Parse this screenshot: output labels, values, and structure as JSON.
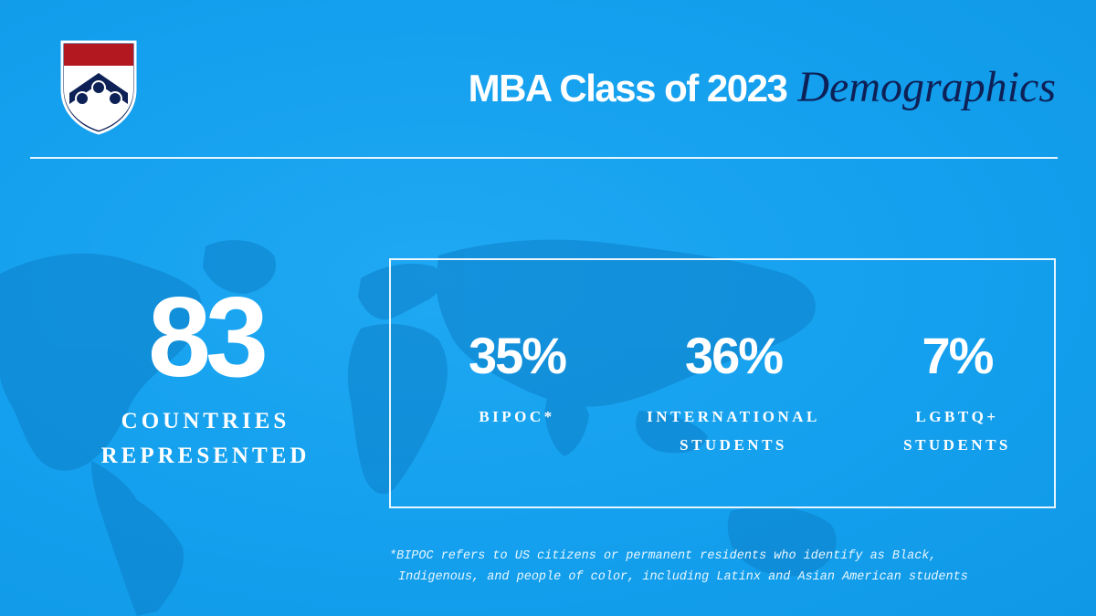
{
  "colors": {
    "background": "#14a0ee",
    "map": "#0d7fc8",
    "accent_navy": "#0d2157",
    "accent_red": "#b3171f",
    "text": "#ffffff"
  },
  "logo": {
    "icon": "penn-shield-icon"
  },
  "header": {
    "title_main": "MBA Class of 2023",
    "title_accent": "Demographics"
  },
  "countries": {
    "number": "83",
    "label_line1": "COUNTRIES",
    "label_line2": "REPRESENTED"
  },
  "stats": [
    {
      "value": "35%",
      "label_line1": "BIPOC*",
      "label_line2": ""
    },
    {
      "value": "36%",
      "label_line1": "INTERNATIONAL",
      "label_line2": "STUDENTS"
    },
    {
      "value": "7%",
      "label_line1": "LGBTQ+",
      "label_line2": "STUDENTS"
    }
  ],
  "footnote": {
    "line1": "*BIPOC refers to US citizens or permanent residents who identify as Black,",
    "line2": "Indigenous, and people of color, including Latinx and Asian American students"
  }
}
